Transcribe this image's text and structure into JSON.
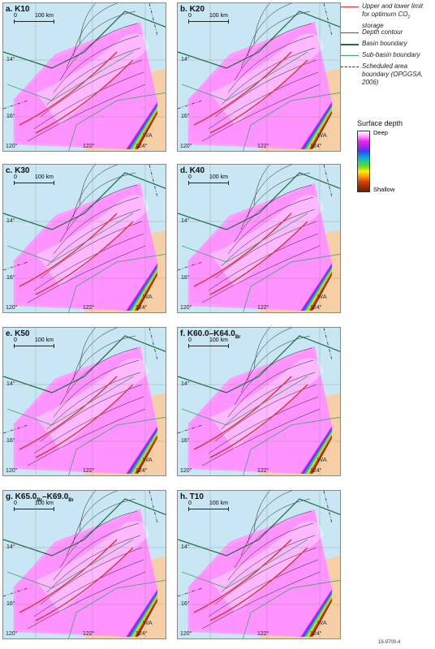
{
  "panels": [
    {
      "label": "a. K10",
      "sub": ""
    },
    {
      "label": "b. K20",
      "sub": ""
    },
    {
      "label": "c. K30",
      "sub": ""
    },
    {
      "label": "d. K40",
      "sub": ""
    },
    {
      "label": "e. K50",
      "sub": ""
    },
    {
      "label": "f. K60.0–K64.0",
      "sub": "Br"
    },
    {
      "label": "g. K65.0",
      "sub": "Br",
      "label2": "–K69.0",
      "sub2": "Br"
    },
    {
      "label": "h. T10",
      "sub": ""
    }
  ],
  "map_text": {
    "scale_zero": "0",
    "scale_km": "100 km",
    "lat_14": "14°",
    "lat_16": "16°",
    "lon_120": "120°",
    "lon_122": "122°",
    "lon_124": "124°",
    "wa": "WA"
  },
  "legend": {
    "limit_line_1": "Upper and lower limit",
    "limit_line_2": "for optimum CO",
    "limit_sub": "2",
    "limit_line_3": "storage",
    "depth_contour": "Depth contour",
    "basin_boundary": "Basin boundary",
    "subbasin_boundary": "Sub-basin boundary",
    "scheduled_line_1": "Scheduled area",
    "scheduled_line_2": "boundary (OPGGSA,",
    "scheduled_line_3": "2006)",
    "colors": {
      "limit": "#e8262a",
      "contour": "#555555",
      "basin": "#1a6b3a",
      "subbasin": "#3aa86b",
      "scheduled": "#333333"
    }
  },
  "surface_depth": {
    "title": "Surface depth",
    "deep": "Deep",
    "shallow": "Shallow"
  },
  "credit": "16-9700-4"
}
